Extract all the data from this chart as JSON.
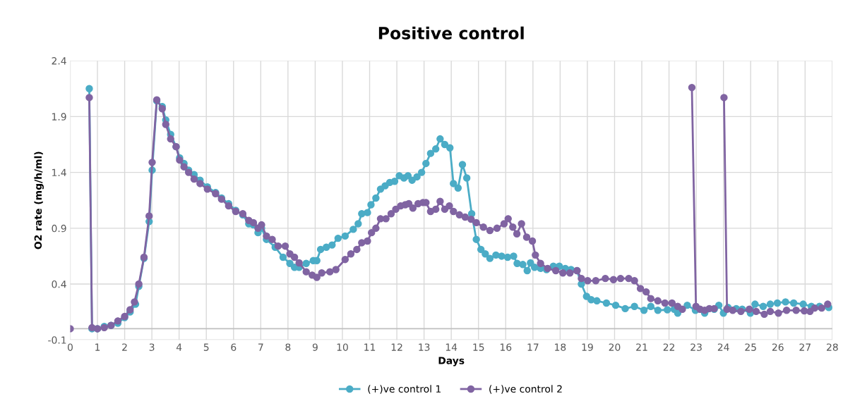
{
  "chart_data": {
    "type": "line",
    "title": "Positive control",
    "xlabel": "Days",
    "ylabel": "O2 rate (mg/h/ml)",
    "xlim": [
      0,
      28
    ],
    "xticks": [
      0,
      1,
      2,
      3,
      4,
      5,
      6,
      7,
      8,
      9,
      10,
      11,
      12,
      13,
      14,
      15,
      16,
      17,
      18,
      19,
      20,
      21,
      22,
      23,
      24,
      25,
      26,
      27,
      28
    ],
    "ylim": [
      -0.1,
      2.4
    ],
    "yticks": [
      -0.1,
      0.4,
      0.9,
      1.4,
      1.9,
      2.4
    ],
    "grid": true,
    "legend": "bottom",
    "marker": "circle",
    "line_style": "solid",
    "ref_lines": [
      {
        "axis": "y",
        "value": 0,
        "color": "#bfbfbf"
      }
    ],
    "series": [
      {
        "name": "(+)ve control 1",
        "color": "#4bacc6",
        "x": [
          0.7,
          0.8,
          1.0,
          1.25,
          1.5,
          1.75,
          2.0,
          2.2,
          2.4,
          2.52,
          2.71,
          2.9,
          3.01,
          3.18,
          3.38,
          3.51,
          3.69,
          3.89,
          4.02,
          4.18,
          4.35,
          4.55,
          4.77,
          5.04,
          5.34,
          5.56,
          5.82,
          6.08,
          6.34,
          6.56,
          6.73,
          6.9,
          7.03,
          7.21,
          7.53,
          7.82,
          8.07,
          8.24,
          8.41,
          8.67,
          8.93,
          9.06,
          9.2,
          9.41,
          9.62,
          9.84,
          10.1,
          10.4,
          10.58,
          10.71,
          10.92,
          11.05,
          11.23,
          11.4,
          11.57,
          11.74,
          11.92,
          12.09,
          12.26,
          12.41,
          12.56,
          12.74,
          12.91,
          13.07,
          13.24,
          13.43,
          13.59,
          13.76,
          13.95,
          14.08,
          14.25,
          14.41,
          14.57,
          14.75,
          14.92,
          15.09,
          15.25,
          15.42,
          15.64,
          15.85,
          16.07,
          16.29,
          16.42,
          16.63,
          16.79,
          16.91,
          17.06,
          17.28,
          17.5,
          17.75,
          17.97,
          18.19,
          18.4,
          18.62,
          18.78,
          18.97,
          19.14,
          19.35,
          19.7,
          20.04,
          20.39,
          20.73,
          21.08,
          21.33,
          21.59,
          21.94,
          22.19,
          22.32,
          22.67,
          22.97,
          23.31,
          23.66,
          23.83,
          24.0,
          24.17,
          24.47,
          24.69,
          24.99,
          25.16,
          25.46,
          25.72,
          25.98,
          26.28,
          26.58,
          26.93,
          27.23,
          27.53,
          27.87
        ],
        "values": [
          2.15,
          0.0,
          0.0,
          0.02,
          0.03,
          0.05,
          0.1,
          0.15,
          0.22,
          0.38,
          0.63,
          0.96,
          1.42,
          2.04,
          1.99,
          1.87,
          1.74,
          1.63,
          1.53,
          1.48,
          1.42,
          1.38,
          1.33,
          1.27,
          1.22,
          1.17,
          1.12,
          1.06,
          1.02,
          0.94,
          0.93,
          0.86,
          0.9,
          0.8,
          0.73,
          0.64,
          0.585,
          0.55,
          0.55,
          0.585,
          0.61,
          0.61,
          0.71,
          0.73,
          0.75,
          0.81,
          0.83,
          0.89,
          0.94,
          1.03,
          1.04,
          1.11,
          1.17,
          1.25,
          1.28,
          1.31,
          1.32,
          1.37,
          1.35,
          1.37,
          1.33,
          1.36,
          1.4,
          1.48,
          1.57,
          1.61,
          1.7,
          1.65,
          1.62,
          1.3,
          1.26,
          1.47,
          1.35,
          1.03,
          0.8,
          0.71,
          0.67,
          0.63,
          0.66,
          0.65,
          0.64,
          0.65,
          0.585,
          0.575,
          0.52,
          0.59,
          0.55,
          0.54,
          0.53,
          0.56,
          0.56,
          0.54,
          0.53,
          0.52,
          0.4,
          0.29,
          0.26,
          0.25,
          0.23,
          0.21,
          0.18,
          0.2,
          0.165,
          0.2,
          0.165,
          0.17,
          0.175,
          0.14,
          0.21,
          0.165,
          0.14,
          0.175,
          0.21,
          0.14,
          0.19,
          0.18,
          0.175,
          0.14,
          0.22,
          0.2,
          0.22,
          0.23,
          0.24,
          0.23,
          0.22,
          0.2,
          0.2,
          0.19
        ]
      },
      {
        "name": "(+)ve control 2",
        "color": "#8064a2",
        "x": [
          0,
          0.55,
          0.7,
          0.8,
          1.0,
          1.25,
          1.5,
          1.75,
          2.0,
          2.2,
          2.36,
          2.52,
          2.71,
          2.9,
          3.01,
          3.18,
          3.38,
          3.51,
          3.69,
          3.89,
          4.02,
          4.18,
          4.35,
          4.55,
          4.77,
          5.04,
          5.34,
          5.56,
          5.82,
          6.08,
          6.34,
          6.56,
          6.73,
          6.9,
          7.03,
          7.21,
          7.42,
          7.64,
          7.9,
          8.07,
          8.24,
          8.41,
          8.67,
          8.89,
          9.06,
          9.24,
          9.54,
          9.76,
          10.1,
          10.31,
          10.53,
          10.71,
          10.92,
          11.07,
          11.23,
          11.4,
          11.6,
          11.79,
          11.96,
          12.14,
          12.31,
          12.44,
          12.59,
          12.78,
          12.96,
          13.07,
          13.24,
          13.43,
          13.59,
          13.76,
          13.93,
          14.08,
          14.3,
          14.51,
          14.73,
          14.92,
          15.18,
          15.42,
          15.68,
          15.94,
          16.09,
          16.26,
          16.41,
          16.58,
          16.77,
          16.98,
          17.09,
          17.28,
          17.54,
          17.84,
          18.1,
          18.36,
          18.62,
          18.78,
          19.01,
          19.31,
          19.66,
          19.96,
          20.22,
          20.52,
          20.73,
          20.95,
          21.16,
          21.33,
          21.59,
          21.85,
          22.11,
          22.32,
          22.49,
          22.6,
          22.84,
          22.99,
          23.14,
          23.31,
          23.48,
          23.66,
          23.8,
          24.02,
          24.13,
          24.34,
          24.64,
          24.95,
          25.2,
          25.5,
          25.72,
          26.02,
          26.32,
          26.67,
          26.97,
          27.18,
          27.35,
          27.61,
          27.83
        ],
        "values": [
          0.0,
          null,
          2.07,
          0.01,
          0.0,
          0.01,
          0.03,
          0.07,
          0.11,
          0.17,
          0.24,
          0.4,
          0.64,
          1.01,
          1.49,
          2.05,
          1.97,
          1.83,
          1.7,
          1.63,
          1.51,
          1.45,
          1.4,
          1.34,
          1.3,
          1.25,
          1.21,
          1.16,
          1.1,
          1.05,
          1.03,
          0.97,
          0.95,
          0.9,
          0.93,
          0.83,
          0.8,
          0.74,
          0.74,
          0.67,
          0.64,
          0.59,
          0.51,
          0.48,
          0.46,
          0.5,
          0.51,
          0.53,
          0.62,
          0.67,
          0.71,
          0.77,
          0.785,
          0.86,
          0.9,
          0.985,
          0.985,
          1.03,
          1.07,
          1.1,
          1.11,
          1.12,
          1.08,
          1.12,
          1.13,
          1.13,
          1.05,
          1.07,
          1.14,
          1.07,
          1.1,
          1.05,
          1.02,
          1.0,
          0.98,
          0.95,
          0.91,
          0.88,
          0.9,
          0.94,
          0.985,
          0.91,
          0.85,
          0.94,
          0.82,
          0.785,
          0.66,
          0.585,
          0.54,
          0.52,
          0.5,
          0.5,
          0.52,
          0.45,
          0.43,
          0.43,
          0.45,
          0.44,
          0.45,
          0.45,
          0.43,
          0.36,
          0.33,
          0.27,
          0.25,
          0.23,
          0.23,
          0.2,
          0.175,
          null,
          2.16,
          0.2,
          0.175,
          0.165,
          0.18,
          0.18,
          null,
          2.07,
          0.175,
          0.165,
          0.155,
          0.175,
          0.155,
          0.13,
          0.155,
          0.14,
          0.165,
          0.165,
          0.16,
          0.155,
          0.185,
          0.185,
          0.22
        ]
      }
    ]
  }
}
